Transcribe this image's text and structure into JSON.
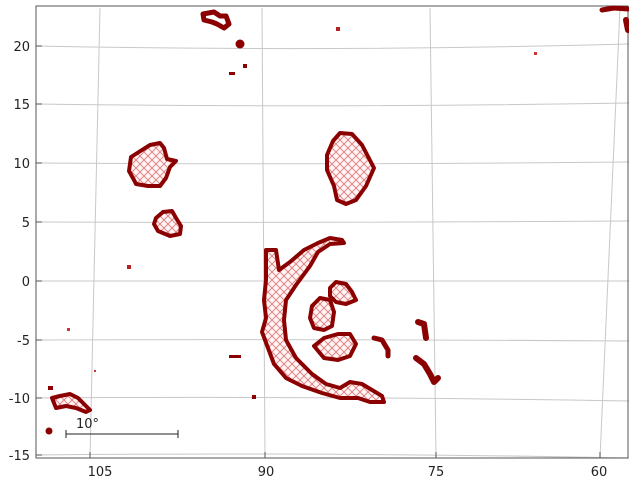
{
  "map": {
    "x_ticks": [
      "105",
      "90",
      "75",
      "60"
    ],
    "y_ticks": [
      "20",
      "15",
      "10",
      "5",
      "0",
      "-5",
      "-10",
      "-15"
    ],
    "scale_label": "10°",
    "outline_color": "#8b0000",
    "hatch_color": "#e07a7a",
    "grid_color": "#c8c8c8"
  }
}
